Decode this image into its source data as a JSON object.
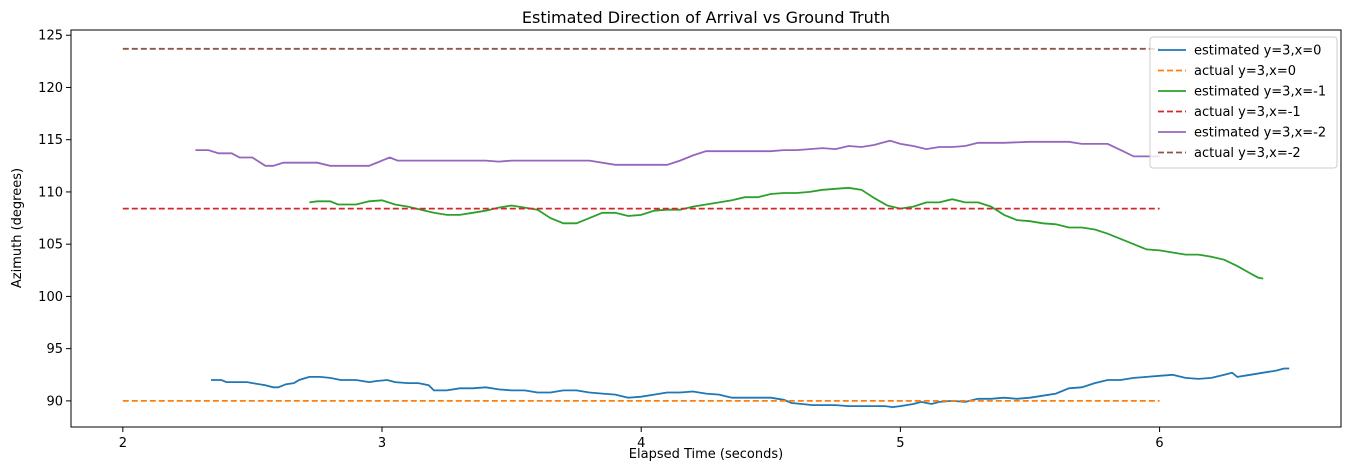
{
  "chart_data": {
    "type": "line",
    "title": "Estimated Direction of Arrival vs Ground Truth",
    "xlabel": "Elapsed Time (seconds)",
    "ylabel": "Azimuth (degrees)",
    "xlim": [
      1.8,
      6.7
    ],
    "ylim": [
      87.5,
      125.5
    ],
    "xticks": [
      2,
      3,
      4,
      5,
      6
    ],
    "yticks": [
      90,
      95,
      100,
      105,
      110,
      115,
      120,
      125
    ],
    "grid": false,
    "legend_position": "upper-right",
    "series": [
      {
        "name": "estimated y=3,x=0",
        "color": "#1f77b4",
        "style": "solid",
        "points": [
          [
            2.34,
            92.0
          ],
          [
            2.38,
            92.0
          ],
          [
            2.4,
            91.8
          ],
          [
            2.45,
            91.8
          ],
          [
            2.48,
            91.8
          ],
          [
            2.5,
            91.7
          ],
          [
            2.55,
            91.5
          ],
          [
            2.58,
            91.3
          ],
          [
            2.6,
            91.3
          ],
          [
            2.63,
            91.6
          ],
          [
            2.66,
            91.7
          ],
          [
            2.68,
            92.0
          ],
          [
            2.72,
            92.3
          ],
          [
            2.76,
            92.3
          ],
          [
            2.8,
            92.2
          ],
          [
            2.84,
            92.0
          ],
          [
            2.9,
            92.0
          ],
          [
            2.95,
            91.8
          ],
          [
            2.98,
            91.9
          ],
          [
            3.02,
            92.0
          ],
          [
            3.05,
            91.8
          ],
          [
            3.1,
            91.7
          ],
          [
            3.14,
            91.7
          ],
          [
            3.18,
            91.5
          ],
          [
            3.2,
            91.0
          ],
          [
            3.25,
            91.0
          ],
          [
            3.3,
            91.2
          ],
          [
            3.35,
            91.2
          ],
          [
            3.4,
            91.3
          ],
          [
            3.45,
            91.1
          ],
          [
            3.5,
            91.0
          ],
          [
            3.55,
            91.0
          ],
          [
            3.6,
            90.8
          ],
          [
            3.65,
            90.8
          ],
          [
            3.7,
            91.0
          ],
          [
            3.75,
            91.0
          ],
          [
            3.8,
            90.8
          ],
          [
            3.85,
            90.7
          ],
          [
            3.9,
            90.6
          ],
          [
            3.95,
            90.3
          ],
          [
            4.0,
            90.4
          ],
          [
            4.05,
            90.6
          ],
          [
            4.1,
            90.8
          ],
          [
            4.15,
            90.8
          ],
          [
            4.2,
            90.9
          ],
          [
            4.25,
            90.7
          ],
          [
            4.3,
            90.6
          ],
          [
            4.35,
            90.3
          ],
          [
            4.4,
            90.3
          ],
          [
            4.45,
            90.3
          ],
          [
            4.5,
            90.3
          ],
          [
            4.55,
            90.1
          ],
          [
            4.58,
            89.8
          ],
          [
            4.62,
            89.7
          ],
          [
            4.66,
            89.6
          ],
          [
            4.7,
            89.6
          ],
          [
            4.75,
            89.6
          ],
          [
            4.8,
            89.5
          ],
          [
            4.85,
            89.5
          ],
          [
            4.9,
            89.5
          ],
          [
            4.94,
            89.5
          ],
          [
            4.97,
            89.4
          ],
          [
            5.0,
            89.5
          ],
          [
            5.05,
            89.7
          ],
          [
            5.08,
            89.9
          ],
          [
            5.12,
            89.7
          ],
          [
            5.15,
            89.9
          ],
          [
            5.2,
            90.0
          ],
          [
            5.25,
            89.9
          ],
          [
            5.3,
            90.2
          ],
          [
            5.35,
            90.2
          ],
          [
            5.4,
            90.3
          ],
          [
            5.45,
            90.2
          ],
          [
            5.5,
            90.3
          ],
          [
            5.55,
            90.5
          ],
          [
            5.6,
            90.7
          ],
          [
            5.65,
            91.2
          ],
          [
            5.7,
            91.3
          ],
          [
            5.75,
            91.7
          ],
          [
            5.8,
            92.0
          ],
          [
            5.85,
            92.0
          ],
          [
            5.9,
            92.2
          ],
          [
            5.95,
            92.3
          ],
          [
            6.0,
            92.4
          ],
          [
            6.05,
            92.5
          ],
          [
            6.1,
            92.2
          ],
          [
            6.15,
            92.1
          ],
          [
            6.2,
            92.2
          ],
          [
            6.25,
            92.5
          ],
          [
            6.28,
            92.7
          ],
          [
            6.3,
            92.3
          ],
          [
            6.35,
            92.5
          ],
          [
            6.4,
            92.7
          ],
          [
            6.45,
            92.9
          ],
          [
            6.48,
            93.1
          ],
          [
            6.5,
            93.1
          ]
        ]
      },
      {
        "name": "actual y=3,x=0",
        "color": "#ff7f0e",
        "style": "dashed",
        "points": [
          [
            2.0,
            90.0
          ],
          [
            6.0,
            90.0
          ]
        ]
      },
      {
        "name": "estimated y=3,x=-1",
        "color": "#2ca02c",
        "style": "solid",
        "points": [
          [
            2.72,
            109.0
          ],
          [
            2.75,
            109.1
          ],
          [
            2.8,
            109.1
          ],
          [
            2.83,
            108.8
          ],
          [
            2.87,
            108.8
          ],
          [
            2.9,
            108.8
          ],
          [
            2.95,
            109.1
          ],
          [
            3.0,
            109.2
          ],
          [
            3.05,
            108.8
          ],
          [
            3.1,
            108.6
          ],
          [
            3.15,
            108.3
          ],
          [
            3.2,
            108.0
          ],
          [
            3.25,
            107.8
          ],
          [
            3.3,
            107.8
          ],
          [
            3.35,
            108.0
          ],
          [
            3.4,
            108.2
          ],
          [
            3.45,
            108.5
          ],
          [
            3.5,
            108.7
          ],
          [
            3.55,
            108.5
          ],
          [
            3.6,
            108.3
          ],
          [
            3.65,
            107.5
          ],
          [
            3.7,
            107.0
          ],
          [
            3.75,
            107.0
          ],
          [
            3.8,
            107.5
          ],
          [
            3.85,
            108.0
          ],
          [
            3.9,
            108.0
          ],
          [
            3.95,
            107.7
          ],
          [
            4.0,
            107.8
          ],
          [
            4.05,
            108.2
          ],
          [
            4.1,
            108.3
          ],
          [
            4.15,
            108.3
          ],
          [
            4.2,
            108.6
          ],
          [
            4.25,
            108.8
          ],
          [
            4.3,
            109.0
          ],
          [
            4.35,
            109.2
          ],
          [
            4.4,
            109.5
          ],
          [
            4.45,
            109.5
          ],
          [
            4.5,
            109.8
          ],
          [
            4.55,
            109.9
          ],
          [
            4.6,
            109.9
          ],
          [
            4.65,
            110.0
          ],
          [
            4.7,
            110.2
          ],
          [
            4.75,
            110.3
          ],
          [
            4.8,
            110.4
          ],
          [
            4.85,
            110.2
          ],
          [
            4.9,
            109.4
          ],
          [
            4.95,
            108.7
          ],
          [
            5.0,
            108.4
          ],
          [
            5.05,
            108.6
          ],
          [
            5.1,
            109.0
          ],
          [
            5.15,
            109.0
          ],
          [
            5.2,
            109.3
          ],
          [
            5.25,
            109.0
          ],
          [
            5.3,
            109.0
          ],
          [
            5.35,
            108.6
          ],
          [
            5.4,
            107.8
          ],
          [
            5.45,
            107.3
          ],
          [
            5.5,
            107.2
          ],
          [
            5.55,
            107.0
          ],
          [
            5.6,
            106.9
          ],
          [
            5.65,
            106.6
          ],
          [
            5.7,
            106.6
          ],
          [
            5.75,
            106.4
          ],
          [
            5.8,
            106.0
          ],
          [
            5.85,
            105.5
          ],
          [
            5.9,
            105.0
          ],
          [
            5.95,
            104.5
          ],
          [
            6.0,
            104.4
          ],
          [
            6.05,
            104.2
          ],
          [
            6.1,
            104.0
          ],
          [
            6.15,
            104.0
          ],
          [
            6.2,
            103.8
          ],
          [
            6.25,
            103.5
          ],
          [
            6.3,
            102.9
          ],
          [
            6.35,
            102.2
          ],
          [
            6.38,
            101.8
          ],
          [
            6.4,
            101.7
          ]
        ]
      },
      {
        "name": "actual y=3,x=-1",
        "color": "#d62728",
        "style": "dashed",
        "points": [
          [
            2.0,
            108.4
          ],
          [
            6.0,
            108.4
          ]
        ]
      },
      {
        "name": "estimated y=3,x=-2",
        "color": "#9467bd",
        "style": "solid",
        "points": [
          [
            2.28,
            114.0
          ],
          [
            2.33,
            114.0
          ],
          [
            2.37,
            113.7
          ],
          [
            2.42,
            113.7
          ],
          [
            2.45,
            113.3
          ],
          [
            2.5,
            113.3
          ],
          [
            2.55,
            112.5
          ],
          [
            2.58,
            112.5
          ],
          [
            2.62,
            112.8
          ],
          [
            2.7,
            112.8
          ],
          [
            2.75,
            112.8
          ],
          [
            2.8,
            112.5
          ],
          [
            2.85,
            112.5
          ],
          [
            2.9,
            112.5
          ],
          [
            2.95,
            112.5
          ],
          [
            3.0,
            113.0
          ],
          [
            3.03,
            113.3
          ],
          [
            3.06,
            113.0
          ],
          [
            3.1,
            113.0
          ],
          [
            3.15,
            113.0
          ],
          [
            3.2,
            113.0
          ],
          [
            3.3,
            113.0
          ],
          [
            3.4,
            113.0
          ],
          [
            3.45,
            112.9
          ],
          [
            3.5,
            113.0
          ],
          [
            3.6,
            113.0
          ],
          [
            3.7,
            113.0
          ],
          [
            3.8,
            113.0
          ],
          [
            3.9,
            112.6
          ],
          [
            3.95,
            112.6
          ],
          [
            4.0,
            112.6
          ],
          [
            4.05,
            112.6
          ],
          [
            4.1,
            112.6
          ],
          [
            4.15,
            113.0
          ],
          [
            4.2,
            113.5
          ],
          [
            4.25,
            113.9
          ],
          [
            4.3,
            113.9
          ],
          [
            4.4,
            113.9
          ],
          [
            4.5,
            113.9
          ],
          [
            4.55,
            114.0
          ],
          [
            4.6,
            114.0
          ],
          [
            4.65,
            114.1
          ],
          [
            4.7,
            114.2
          ],
          [
            4.75,
            114.1
          ],
          [
            4.8,
            114.4
          ],
          [
            4.85,
            114.3
          ],
          [
            4.9,
            114.5
          ],
          [
            4.93,
            114.7
          ],
          [
            4.96,
            114.9
          ],
          [
            5.0,
            114.6
          ],
          [
            5.05,
            114.4
          ],
          [
            5.1,
            114.1
          ],
          [
            5.15,
            114.3
          ],
          [
            5.2,
            114.3
          ],
          [
            5.25,
            114.4
          ],
          [
            5.3,
            114.7
          ],
          [
            5.4,
            114.7
          ],
          [
            5.5,
            114.8
          ],
          [
            5.6,
            114.8
          ],
          [
            5.65,
            114.8
          ],
          [
            5.7,
            114.6
          ],
          [
            5.8,
            114.6
          ],
          [
            5.85,
            114.0
          ],
          [
            5.9,
            113.4
          ],
          [
            5.95,
            113.4
          ],
          [
            6.0,
            113.4
          ]
        ]
      },
      {
        "name": "actual y=3,x=-2",
        "color": "#8c564b",
        "style": "dashed",
        "points": [
          [
            2.0,
            123.7
          ],
          [
            6.0,
            123.7
          ]
        ]
      }
    ]
  }
}
